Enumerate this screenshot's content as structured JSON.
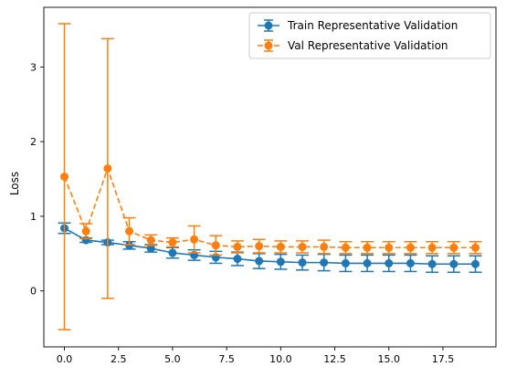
{
  "chart_data": {
    "type": "line",
    "title": "",
    "xlabel": "",
    "ylabel": "Loss",
    "xlim": [
      -0.95,
      19.95
    ],
    "ylim": [
      -0.75,
      3.8
    ],
    "x_ticks": [
      0,
      2.5,
      5,
      7.5,
      10,
      12.5,
      15,
      17.5
    ],
    "x_tick_labels": [
      "0.0",
      "2.5",
      "5.0",
      "7.5",
      "10.0",
      "12.5",
      "15.0",
      "17.5"
    ],
    "y_ticks": [
      0,
      1,
      2,
      3
    ],
    "y_tick_labels": [
      "0",
      "1",
      "2",
      "3"
    ],
    "grid": false,
    "legend_position": "top-right",
    "x": [
      0,
      1,
      2,
      3,
      4,
      5,
      6,
      7,
      8,
      9,
      10,
      11,
      12,
      13,
      14,
      15,
      16,
      17,
      18,
      19
    ],
    "series": [
      {
        "name": "Train Representative Validation",
        "color": "#1f77b4",
        "line_style": "solid",
        "marker": "circle",
        "values": [
          0.84,
          0.68,
          0.65,
          0.61,
          0.57,
          0.51,
          0.48,
          0.45,
          0.43,
          0.4,
          0.39,
          0.38,
          0.38,
          0.37,
          0.37,
          0.37,
          0.37,
          0.36,
          0.36,
          0.36
        ],
        "errors": [
          0.07,
          0.03,
          0.03,
          0.05,
          0.05,
          0.07,
          0.07,
          0.08,
          0.09,
          0.1,
          0.1,
          0.1,
          0.11,
          0.11,
          0.11,
          0.11,
          0.11,
          0.11,
          0.11,
          0.11
        ]
      },
      {
        "name": "Val Representative Validation",
        "color": "#ff7f0e",
        "line_style": "dashed",
        "marker": "circle",
        "values": [
          1.53,
          0.8,
          1.64,
          0.8,
          0.68,
          0.65,
          0.69,
          0.61,
          0.59,
          0.6,
          0.59,
          0.59,
          0.59,
          0.58,
          0.58,
          0.58,
          0.58,
          0.58,
          0.58,
          0.58
        ],
        "errors": [
          2.05,
          0.1,
          1.74,
          0.18,
          0.07,
          0.06,
          0.18,
          0.13,
          0.08,
          0.09,
          0.08,
          0.08,
          0.09,
          0.08,
          0.08,
          0.08,
          0.08,
          0.08,
          0.08,
          0.08
        ]
      }
    ]
  }
}
